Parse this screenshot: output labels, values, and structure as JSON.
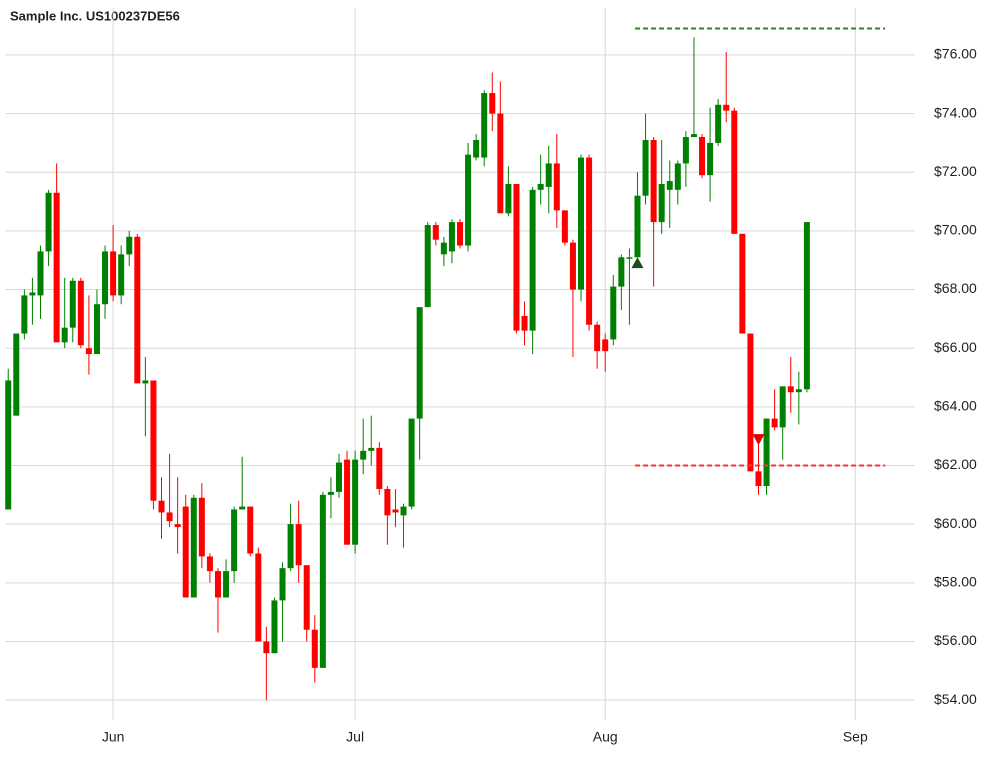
{
  "chart_data": {
    "type": "candlestick",
    "title": "Sample Inc. US100237DE56",
    "x": [
      -13,
      -12,
      -11,
      -10,
      -9,
      -8,
      -7,
      -6,
      -5,
      -4,
      -3,
      -2,
      -1,
      0,
      1,
      2,
      3,
      4,
      5,
      6,
      7,
      8,
      9,
      10,
      11,
      12,
      13,
      14,
      15,
      16,
      17,
      18,
      19,
      20,
      21,
      22,
      23,
      24,
      25,
      26,
      27,
      28,
      29,
      30,
      31,
      32,
      33,
      34,
      35,
      36,
      37,
      38,
      39,
      40,
      41,
      42,
      43,
      44,
      45,
      46,
      47,
      48,
      49,
      50,
      51,
      52,
      53,
      54,
      55,
      56,
      57,
      58,
      59,
      60,
      61,
      62,
      63,
      64,
      65,
      66,
      67,
      68,
      69,
      70,
      71,
      72,
      73,
      74,
      75,
      76,
      77,
      78,
      79,
      80,
      81,
      82,
      83,
      84,
      85,
      86
    ],
    "open": [
      60.5,
      63.7,
      66.5,
      67.8,
      67.8,
      69.3,
      71.3,
      66.2,
      66.7,
      68.3,
      66.0,
      65.8,
      67.5,
      69.3,
      67.8,
      69.2,
      69.8,
      64.8,
      64.9,
      60.8,
      60.4,
      60.0,
      60.6,
      57.5,
      60.9,
      58.9,
      58.4,
      57.5,
      58.4,
      60.5,
      60.6,
      59.0,
      56.0,
      55.6,
      57.4,
      58.5,
      60.0,
      58.6,
      56.4,
      55.1,
      61.0,
      61.1,
      62.2,
      59.3,
      62.2,
      62.5,
      62.6,
      61.2,
      60.5,
      60.3,
      60.6,
      63.6,
      67.4,
      70.2,
      69.2,
      69.3,
      70.3,
      69.5,
      72.5,
      72.5,
      74.7,
      74.0,
      70.6,
      71.6,
      67.1,
      66.6,
      71.4,
      71.5,
      72.3,
      70.7,
      69.6,
      68.0,
      72.5,
      66.8,
      66.3,
      66.3,
      68.1,
      69.1,
      69.1,
      71.2,
      73.1,
      70.3,
      71.4,
      71.4,
      72.3,
      73.2,
      73.2,
      71.9,
      73.0,
      74.3,
      74.1,
      69.9,
      66.5,
      61.8,
      61.3,
      63.6,
      63.3,
      64.7,
      64.5,
      64.6
    ],
    "high": [
      65.3,
      66.5,
      68.0,
      68.4,
      69.5,
      71.4,
      72.3,
      68.4,
      68.4,
      68.4,
      67.8,
      68.0,
      69.5,
      70.2,
      69.5,
      70.0,
      69.9,
      65.7,
      64.9,
      61.6,
      62.4,
      61.6,
      61.0,
      61.0,
      61.4,
      59.0,
      58.5,
      58.8,
      60.6,
      62.3,
      60.6,
      59.2,
      56.5,
      57.5,
      58.7,
      60.7,
      60.8,
      58.6,
      56.9,
      61.1,
      61.6,
      62.4,
      62.5,
      62.5,
      63.6,
      63.7,
      62.8,
      61.3,
      61.2,
      60.7,
      63.6,
      67.4,
      70.3,
      70.3,
      69.8,
      70.4,
      70.4,
      73.0,
      73.3,
      74.8,
      75.4,
      75.1,
      72.2,
      71.6,
      67.6,
      71.5,
      72.6,
      72.9,
      73.3,
      70.7,
      69.7,
      72.6,
      72.6,
      66.9,
      66.5,
      68.5,
      69.2,
      69.4,
      72.0,
      74.0,
      73.2,
      73.1,
      72.4,
      72.4,
      73.4,
      76.6,
      73.3,
      74.2,
      74.5,
      76.1,
      74.2,
      69.9,
      66.5,
      62.8,
      63.6,
      64.6,
      64.7,
      65.7,
      65.2,
      70.3
    ],
    "low": [
      60.5,
      63.7,
      66.3,
      66.8,
      67.0,
      68.8,
      66.2,
      66.0,
      66.2,
      66.0,
      65.1,
      65.8,
      67.0,
      67.6,
      67.5,
      68.8,
      64.8,
      63.0,
      60.5,
      59.5,
      59.9,
      59.0,
      57.5,
      57.5,
      58.5,
      58.0,
      56.3,
      57.5,
      58.0,
      60.5,
      58.9,
      56.0,
      54.0,
      55.6,
      56.0,
      58.4,
      58.0,
      56.0,
      54.6,
      55.1,
      60.2,
      60.9,
      59.3,
      59.0,
      61.7,
      62.0,
      61.0,
      59.3,
      59.9,
      59.2,
      60.5,
      62.2,
      67.4,
      69.5,
      68.8,
      68.9,
      69.4,
      69.3,
      72.4,
      72.2,
      73.4,
      70.6,
      70.5,
      66.5,
      66.1,
      65.8,
      70.9,
      70.6,
      70.1,
      69.5,
      65.7,
      67.6,
      66.6,
      65.3,
      65.2,
      66.1,
      67.3,
      66.8,
      69.1,
      70.9,
      68.1,
      69.9,
      70.1,
      70.9,
      71.5,
      73.2,
      71.8,
      71.0,
      72.9,
      73.7,
      69.9,
      66.5,
      61.8,
      61.0,
      61.0,
      63.2,
      62.2,
      63.8,
      63.4,
      64.5
    ],
    "close": [
      64.9,
      66.5,
      67.8,
      67.9,
      69.3,
      71.3,
      66.2,
      66.7,
      68.3,
      66.1,
      65.8,
      67.5,
      69.3,
      67.8,
      69.2,
      69.8,
      64.8,
      64.9,
      60.8,
      60.4,
      60.1,
      59.9,
      57.5,
      60.9,
      58.9,
      58.4,
      57.5,
      58.4,
      60.5,
      60.6,
      59.0,
      56.0,
      55.6,
      57.4,
      58.5,
      60.0,
      58.6,
      56.4,
      55.1,
      61.0,
      61.1,
      62.1,
      59.3,
      62.2,
      62.5,
      62.6,
      61.2,
      60.3,
      60.4,
      60.6,
      63.6,
      67.4,
      70.2,
      69.7,
      69.6,
      70.3,
      69.5,
      72.6,
      73.1,
      74.7,
      74.0,
      70.6,
      71.6,
      66.6,
      66.6,
      71.4,
      71.6,
      72.3,
      70.7,
      69.6,
      68.0,
      72.5,
      66.8,
      65.9,
      65.9,
      68.1,
      69.1,
      69.1,
      71.2,
      73.1,
      70.3,
      71.6,
      71.7,
      72.3,
      73.2,
      73.3,
      71.9,
      73.0,
      74.3,
      74.1,
      69.9,
      66.5,
      61.8,
      61.3,
      63.6,
      63.3,
      64.7,
      64.5,
      64.6,
      70.3
    ],
    "up_color": "#008000",
    "down_color": "#ff0000",
    "signals": [
      {
        "x": 65,
        "y": 68.9,
        "kind": "up",
        "color": "#1a4d1a"
      },
      {
        "x": 80,
        "y": 62.9,
        "kind": "down",
        "color": "#e60000"
      }
    ],
    "levels": [
      {
        "value": 76.9,
        "color": "#228b22",
        "x_range": [
          64.7,
          95.7
        ]
      },
      {
        "value": 62.0,
        "color": "#ff3333",
        "x_range": [
          64.7,
          95.7
        ]
      }
    ],
    "xlim": [
      -13.4,
      99.4
    ],
    "xticks": [
      {
        "value": 0,
        "label": "Jun"
      },
      {
        "value": 30,
        "label": "Jul"
      },
      {
        "value": 61,
        "label": "Aug"
      },
      {
        "value": 92,
        "label": "Sep"
      }
    ],
    "ylim": [
      53.8,
      77.6
    ],
    "yticks": [
      {
        "value": 54,
        "label": "$54.00"
      },
      {
        "value": 56,
        "label": "$56.00"
      },
      {
        "value": 58,
        "label": "$58.00"
      },
      {
        "value": 60,
        "label": "$60.00"
      },
      {
        "value": 62,
        "label": "$62.00"
      },
      {
        "value": 64,
        "label": "$64.00"
      },
      {
        "value": 66,
        "label": "$66.00"
      },
      {
        "value": 68,
        "label": "$68.00"
      },
      {
        "value": 70,
        "label": "$70.00"
      },
      {
        "value": 72,
        "label": "$72.00"
      },
      {
        "value": 74,
        "label": "$74.00"
      },
      {
        "value": 76,
        "label": "$76.00"
      }
    ],
    "grid": true
  }
}
